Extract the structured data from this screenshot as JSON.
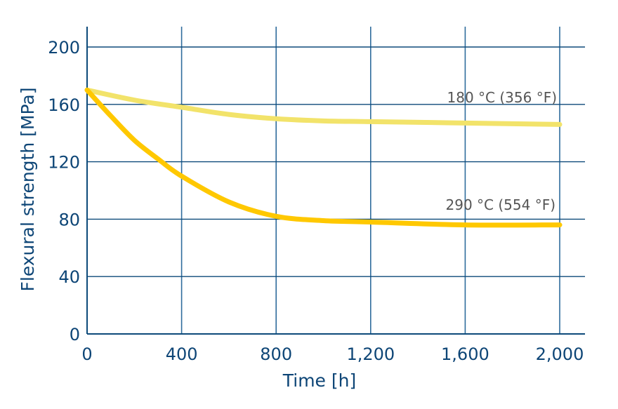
{
  "chart_data": {
    "type": "line",
    "title": "",
    "xlabel": "Time [h]",
    "ylabel": "Flexural strength [MPa]",
    "xlim": [
      0,
      2000
    ],
    "ylim": [
      0,
      200
    ],
    "xticks": [
      "0",
      "400",
      "800",
      "1,200",
      "1,600",
      "2,000"
    ],
    "xtick_values": [
      0,
      400,
      800,
      1200,
      1600,
      2000
    ],
    "yticks": [
      "0",
      "40",
      "80",
      "120",
      "160",
      "200"
    ],
    "ytick_values": [
      0,
      40,
      80,
      120,
      160,
      200
    ],
    "grid": true,
    "series": [
      {
        "name": "180 °C (356 °F)",
        "color": "#f2e36a",
        "x": [
          0,
          200,
          400,
          600,
          800,
          1000,
          1200,
          1600,
          2000
        ],
        "y": [
          170,
          163,
          158,
          153,
          150,
          148.5,
          148,
          147,
          146
        ]
      },
      {
        "name": "290 °C (554 °F)",
        "color": "#ffc800",
        "x": [
          0,
          100,
          200,
          300,
          400,
          600,
          800,
          1000,
          1200,
          1600,
          2000
        ],
        "y": [
          170,
          152,
          135,
          122,
          110,
          92,
          82,
          79,
          78,
          76,
          76
        ]
      }
    ]
  }
}
